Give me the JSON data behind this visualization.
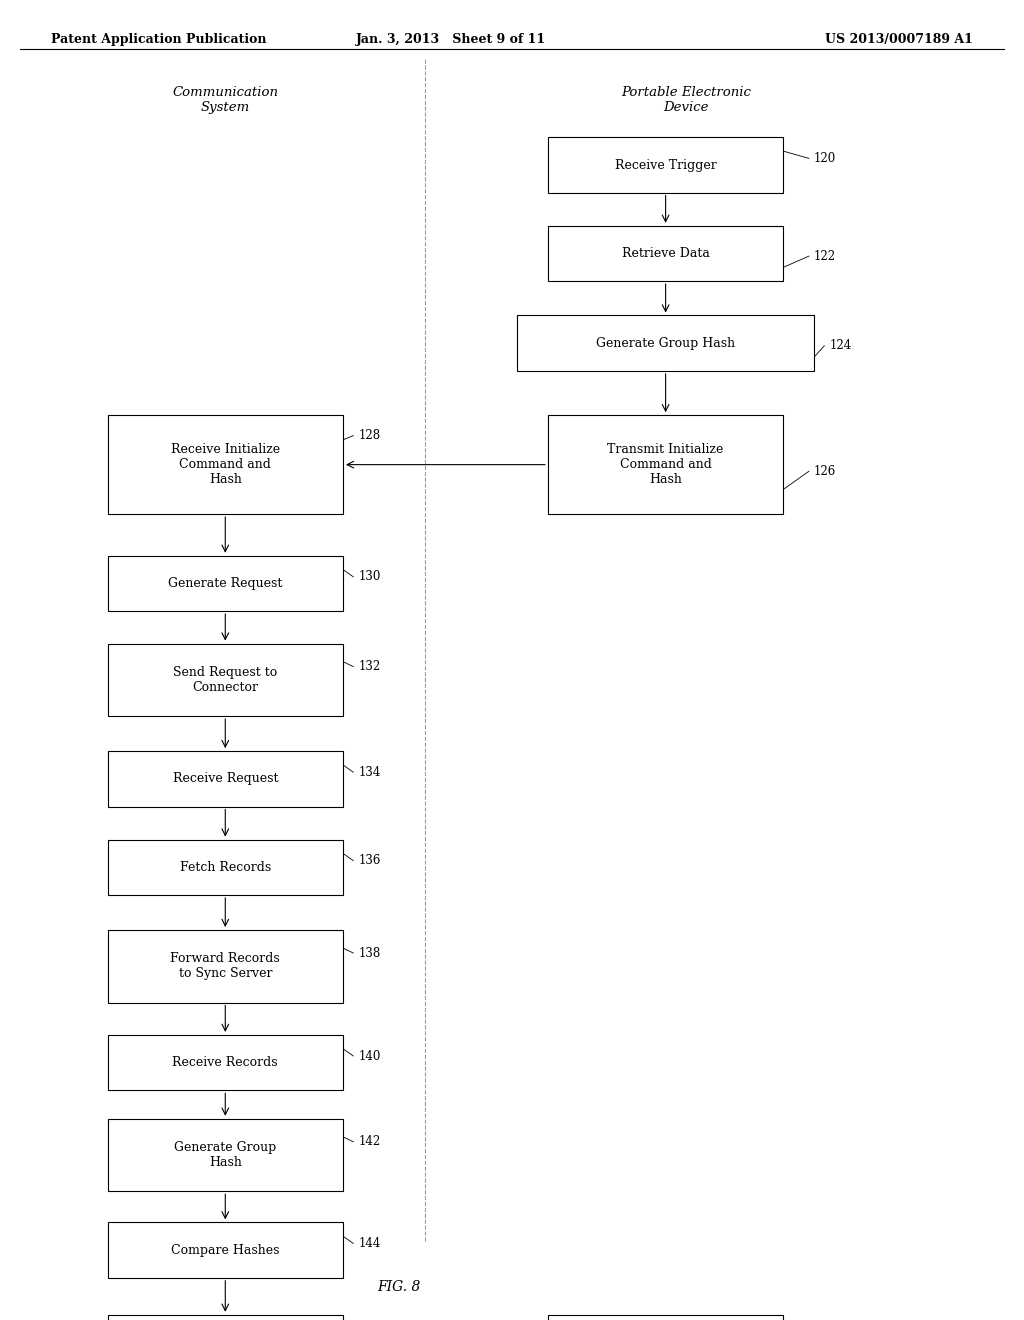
{
  "header_left": "Patent Application Publication",
  "header_mid": "Jan. 3, 2013   Sheet 9 of 11",
  "header_right": "US 2013/0007189 A1",
  "title_left": "Communication\nSystem",
  "title_right": "Portable Electronic\nDevice",
  "fig_label": "FIG. 8",
  "background_color": "#ffffff",
  "box_color": "#ffffff",
  "box_edge_color": "#000000",
  "text_color": "#000000",
  "arrow_color": "#000000"
}
